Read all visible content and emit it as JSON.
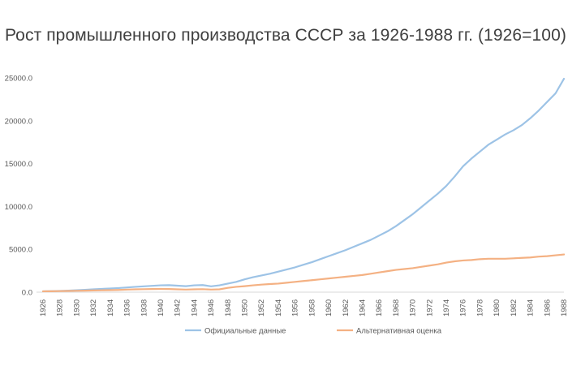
{
  "chart_data": {
    "type": "line",
    "title": "Рост промышленного производства СССР за 1926-1988 гг. (1926=100)",
    "xlabel": "",
    "ylabel": "",
    "ylim": [
      0,
      25000
    ],
    "y_ticks": [
      "0.0",
      "5000.0",
      "10000.0",
      "15000.0",
      "20000.0",
      "25000.0"
    ],
    "x": [
      1926,
      1927,
      1928,
      1929,
      1930,
      1931,
      1932,
      1933,
      1934,
      1935,
      1936,
      1937,
      1938,
      1939,
      1940,
      1941,
      1942,
      1943,
      1944,
      1945,
      1946,
      1947,
      1948,
      1949,
      1950,
      1951,
      1952,
      1953,
      1954,
      1955,
      1956,
      1957,
      1958,
      1959,
      1960,
      1961,
      1962,
      1963,
      1964,
      1965,
      1966,
      1967,
      1968,
      1969,
      1970,
      1971,
      1972,
      1973,
      1974,
      1975,
      1976,
      1977,
      1978,
      1979,
      1980,
      1981,
      1982,
      1983,
      1984,
      1985,
      1986,
      1987,
      1988
    ],
    "x_tick_labels": [
      "1926",
      "1928",
      "1930",
      "1932",
      "1934",
      "1936",
      "1938",
      "1940",
      "1942",
      "1944",
      "1946",
      "1948",
      "1950",
      "1952",
      "1954",
      "1956",
      "1958",
      "1960",
      "1962",
      "1964",
      "1966",
      "1968",
      "1970",
      "1972",
      "1974",
      "1976",
      "1978",
      "1980",
      "1982",
      "1984",
      "1986",
      "1988"
    ],
    "series": [
      {
        "name": "Официальные данные",
        "color": "#9dc3e6",
        "values": [
          100,
          120,
          150,
          180,
          230,
          280,
          330,
          380,
          430,
          480,
          550,
          620,
          680,
          740,
          800,
          820,
          760,
          700,
          800,
          830,
          680,
          800,
          1000,
          1200,
          1500,
          1750,
          1950,
          2150,
          2400,
          2650,
          2900,
          3200,
          3500,
          3850,
          4200,
          4550,
          4900,
          5300,
          5700,
          6100,
          6600,
          7100,
          7700,
          8400,
          9100,
          9900,
          10700,
          11500,
          12400,
          13500,
          14700,
          15600,
          16400,
          17200,
          17800,
          18400,
          18900,
          19500,
          20300,
          21200,
          22200,
          23200,
          24900
        ]
      },
      {
        "name": "Альтернативная оценка",
        "color": "#f4b183",
        "values": [
          100,
          110,
          125,
          140,
          160,
          180,
          200,
          220,
          240,
          260,
          300,
          330,
          350,
          370,
          380,
          370,
          330,
          300,
          330,
          350,
          300,
          330,
          500,
          620,
          700,
          800,
          880,
          950,
          1000,
          1100,
          1200,
          1300,
          1400,
          1500,
          1600,
          1700,
          1800,
          1900,
          2000,
          2150,
          2300,
          2450,
          2600,
          2700,
          2800,
          2950,
          3100,
          3250,
          3450,
          3600,
          3700,
          3750,
          3850,
          3900,
          3900,
          3900,
          3950,
          4000,
          4050,
          4150,
          4200,
          4300,
          4400
        ]
      }
    ],
    "grid": false,
    "legend": "bottom"
  }
}
